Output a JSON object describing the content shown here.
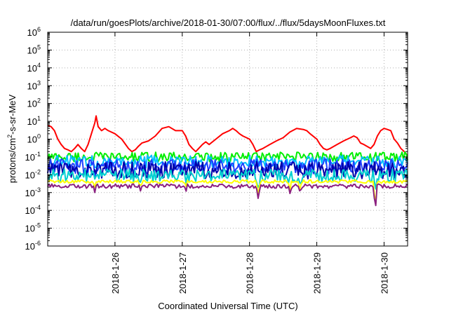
{
  "chart_data": {
    "type": "line",
    "title": "/data/run/goesPlots/archive/2018-01-30/07:00/flux/../flux/5daysMoonFluxes.txt",
    "xlabel": "Coordinated Universal Time (UTC)",
    "ylabel": "protons/cm²-s-sr-MeV",
    "ylabel_parts": [
      "protons/cm",
      "2",
      "-s-sr-MeV"
    ],
    "yscale": "log",
    "ylim": [
      1e-06,
      1000000.0
    ],
    "xlim_days": [
      25.0,
      30.35
    ],
    "y_ticks": [
      {
        "exp": "-6",
        "value": -6
      },
      {
        "exp": "-5",
        "value": -5
      },
      {
        "exp": "-4",
        "value": -4
      },
      {
        "exp": "-3",
        "value": -3
      },
      {
        "exp": "-2",
        "value": -2
      },
      {
        "exp": "-1",
        "value": -1
      },
      {
        "exp": "0",
        "value": 0
      },
      {
        "exp": "1",
        "value": 1
      },
      {
        "exp": "2",
        "value": 2
      },
      {
        "exp": "3",
        "value": 3
      },
      {
        "exp": "4",
        "value": 4
      },
      {
        "exp": "5",
        "value": 5
      },
      {
        "exp": "6",
        "value": 6
      }
    ],
    "y_tick_base": "10",
    "x_ticks": [
      {
        "label": "2018-1-26",
        "day": 26
      },
      {
        "label": "2018-1-27",
        "day": 27
      },
      {
        "label": "2018-1-28",
        "day": 28
      },
      {
        "label": "2018-1-29",
        "day": 29
      },
      {
        "label": "2018-1-30",
        "day": 30
      }
    ],
    "grid": true,
    "series": [
      {
        "color": "#ff0000",
        "width": 2,
        "x": [
          25.0,
          25.05,
          25.1,
          25.15,
          25.2,
          25.25,
          25.3,
          25.35,
          25.4,
          25.45,
          25.5,
          25.55,
          25.6,
          25.65,
          25.7,
          25.72,
          25.75,
          25.8,
          25.85,
          25.9,
          26.0,
          26.1,
          26.2,
          26.25,
          26.3,
          26.35,
          26.4,
          26.5,
          26.6,
          26.7,
          26.8,
          26.9,
          27.0,
          27.05,
          27.1,
          27.15,
          27.2,
          27.3,
          27.35,
          27.4,
          27.5,
          27.6,
          27.7,
          27.75,
          27.8,
          27.85,
          27.9,
          28.0,
          28.05,
          28.1,
          28.15,
          28.2,
          28.3,
          28.4,
          28.5,
          28.6,
          28.7,
          28.8,
          28.85,
          28.9,
          29.0,
          29.05,
          29.1,
          29.15,
          29.2,
          29.3,
          29.4,
          29.5,
          29.55,
          29.6,
          29.65,
          29.7,
          29.8,
          29.85,
          29.9,
          29.95,
          30.0,
          30.05,
          30.1,
          30.15,
          30.2,
          30.25,
          30.3,
          30.35
        ],
        "y": [
          6,
          5,
          3,
          1,
          0.5,
          0.3,
          0.25,
          0.2,
          0.3,
          0.5,
          0.3,
          0.2,
          0.5,
          2,
          8,
          20,
          5,
          3,
          4,
          3,
          2,
          1,
          0.3,
          0.2,
          0.25,
          0.4,
          0.6,
          0.8,
          1.5,
          4,
          5,
          3,
          3,
          1.5,
          0.5,
          0.3,
          0.2,
          0.5,
          0.7,
          0.5,
          1,
          2,
          3,
          4,
          3,
          2,
          1.5,
          1,
          0.5,
          0.2,
          0.25,
          0.3,
          0.5,
          0.8,
          1.2,
          2.5,
          4,
          3.5,
          3,
          2,
          1,
          0.5,
          0.3,
          0.25,
          0.3,
          0.5,
          0.8,
          1.2,
          1.5,
          1.2,
          0.6,
          0.5,
          0.3,
          0.5,
          1.5,
          3,
          4,
          3.5,
          3,
          1,
          0.6,
          0.3,
          0.2,
          0.12
        ]
      },
      {
        "color": "#00ee00",
        "width": 2,
        "base": 0.1,
        "amp": 0.09,
        "dips": []
      },
      {
        "color": "#00bfff",
        "width": 2,
        "base": 0.055,
        "amp": 0.12,
        "dips": [
          {
            "x": 25.7,
            "depth": 0.35
          }
        ]
      },
      {
        "color": "#1f3fff",
        "width": 2,
        "base": 0.03,
        "amp": 0.14,
        "dips": [
          {
            "x": 25.7,
            "depth": 0.4
          }
        ]
      },
      {
        "color": "#0000aa",
        "width": 2,
        "base": 0.018,
        "amp": 0.16,
        "dips": [
          {
            "x": 25.7,
            "depth": 0.4
          }
        ]
      },
      {
        "color": "#00d0d0",
        "width": 2,
        "base": 0.009,
        "amp": 0.12,
        "dips": [
          {
            "x": 25.7,
            "depth": 0.3
          },
          {
            "x": 26.38,
            "depth": 0.3
          },
          {
            "x": 27.05,
            "depth": 0.3
          },
          {
            "x": 28.13,
            "depth": 0.7
          },
          {
            "x": 28.6,
            "depth": 0.4
          },
          {
            "x": 28.75,
            "depth": 0.4
          },
          {
            "x": 29.87,
            "depth": 1.2
          }
        ]
      },
      {
        "color": "#ffff00",
        "width": 2,
        "base": 0.0042,
        "amp": 0.03,
        "dips": [
          {
            "x": 25.7,
            "depth": 0.3
          },
          {
            "x": 26.38,
            "depth": 0.3
          },
          {
            "x": 27.05,
            "depth": 0.3
          },
          {
            "x": 28.13,
            "depth": 0.9
          },
          {
            "x": 28.6,
            "depth": 0.45
          },
          {
            "x": 28.75,
            "depth": 0.5
          },
          {
            "x": 29.87,
            "depth": 1.6
          }
        ]
      },
      {
        "color": "#8b2080",
        "width": 2,
        "base": 0.0023,
        "amp": 0.04,
        "dips": [
          {
            "x": 25.7,
            "depth": 0.25
          },
          {
            "x": 26.38,
            "depth": 0.25
          },
          {
            "x": 27.05,
            "depth": 0.25
          },
          {
            "x": 28.13,
            "depth": 0.75
          },
          {
            "x": 28.6,
            "depth": 0.35
          },
          {
            "x": 28.75,
            "depth": 0.4
          },
          {
            "x": 29.87,
            "depth": 1.5
          }
        ]
      }
    ]
  }
}
